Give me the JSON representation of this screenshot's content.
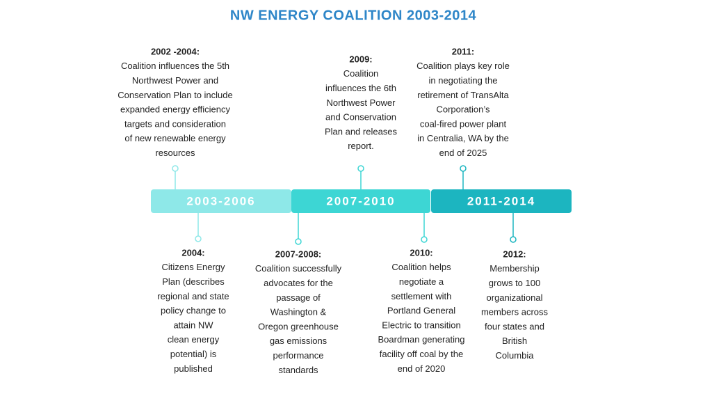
{
  "title": "NW ENERGY COALITION 2003-2014",
  "periods": [
    {
      "label": "2003-2006"
    },
    {
      "label": "2007-2010"
    },
    {
      "label": "2011-2014"
    }
  ],
  "events": [
    {
      "year": "2002 -2004:",
      "lines": [
        "Coalition influences the 5th",
        "Northwest Power and",
        "Conservation Plan to include",
        "expanded energy efficiency",
        "targets and consideration",
        "of new renewable energy",
        "resources"
      ]
    },
    {
      "year": "2009:",
      "lines": [
        "Coalition",
        "influences the 6th",
        "Northwest Power",
        "and Conservation",
        "Plan and releases",
        "report."
      ]
    },
    {
      "year": "2011:",
      "lines": [
        "Coalition plays key role",
        "in negotiating the",
        "retirement of TransAlta",
        "Corporation’s",
        "coal-fired power plant",
        "in Centralia, WA by the",
        "end of 2025"
      ]
    },
    {
      "year": "2004:",
      "lines": [
        "Citizens Energy",
        "Plan (describes",
        "regional and state",
        "policy change to",
        "attain NW",
        "clean energy",
        "potential) is",
        "published"
      ]
    },
    {
      "year": "2007-2008:",
      "lines": [
        "Coalition successfully",
        "advocates for the",
        "passage of",
        "Washington &",
        "Oregon greenhouse",
        "gas emissions",
        "performance",
        "standards"
      ]
    },
    {
      "year": "2010:",
      "lines": [
        "Coalition helps",
        "negotiate a",
        "settlement with",
        "Portland General",
        "Electric to transition",
        "Boardman generating",
        "facility off coal by the",
        "end of 2020"
      ]
    },
    {
      "year": "2012:",
      "lines": [
        "Membership",
        "grows to 100",
        "organizational",
        "members across",
        "four states and",
        "British",
        "Columbia"
      ]
    }
  ]
}
